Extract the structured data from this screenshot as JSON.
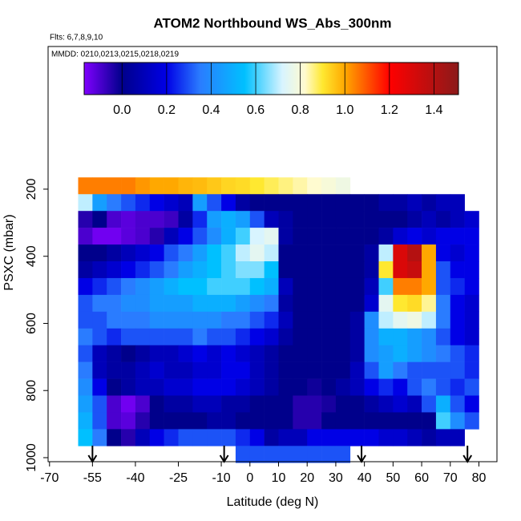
{
  "chart_data": {
    "type": "heatmap",
    "title": "ATOM2 Northbound WS_Abs_300nm",
    "subtitle": "Flts: 6,7,8,9,10",
    "annotation": "MMDD: 0210,0213,0215,0218,0219",
    "x_label": "Latitude (deg N)",
    "y_label": "PSXC (mbar)",
    "xlim": [
      -70.5,
      86.3
    ],
    "ylim": [
      1012,
      -225
    ],
    "xticks": [
      -70,
      -55,
      -40,
      -25,
      -10,
      0,
      10,
      20,
      30,
      40,
      50,
      60,
      70,
      80
    ],
    "yticks": [
      200,
      400,
      600,
      800,
      1000
    ],
    "x": [
      -57.5,
      -52.5,
      -47.5,
      -42.5,
      -37.5,
      -32.5,
      -27.5,
      -22.5,
      -17.5,
      -12.5,
      -7.5,
      -2.5,
      2.5,
      7.5,
      12.5,
      17.5,
      22.5,
      27.5,
      32.5,
      37.5,
      42.5,
      47.5,
      52.5,
      57.5,
      62.5,
      67.5,
      72.5,
      77.5
    ],
    "y": [
      190,
      240,
      290,
      340,
      390,
      440,
      490,
      540,
      590,
      640,
      690,
      740,
      790,
      840,
      890,
      940,
      990
    ],
    "z": [
      [
        1.05,
        1.05,
        1.05,
        1.05,
        1.02,
        1.0,
        1.0,
        0.98,
        0.97,
        0.95,
        0.93,
        0.92,
        0.9,
        0.88,
        0.86,
        0.84,
        0.82,
        0.8,
        0.78,
        null,
        null,
        null,
        null,
        null,
        null,
        null,
        null,
        null
      ],
      [
        0.7,
        0.45,
        0.35,
        0.3,
        0.25,
        0.2,
        0.15,
        0.1,
        0.45,
        0.3,
        0.2,
        0.05,
        0.0,
        0.0,
        0.0,
        0.0,
        0.0,
        0.0,
        0.0,
        0.0,
        0.0,
        0.05,
        0.05,
        0.1,
        0.05,
        0.1,
        0.1,
        null
      ],
      [
        -0.05,
        0.0,
        -0.1,
        -0.12,
        -0.1,
        -0.1,
        -0.08,
        0.05,
        0.25,
        0.45,
        0.5,
        0.45,
        0.3,
        0.1,
        0.05,
        0.0,
        0.0,
        0.0,
        0.0,
        0.0,
        0.0,
        0.0,
        0.0,
        0.05,
        0.1,
        0.05,
        0.1,
        0.15
      ],
      [
        -0.1,
        -0.15,
        -0.15,
        -0.12,
        -0.1,
        -0.05,
        0.1,
        0.2,
        0.3,
        0.4,
        0.5,
        0.6,
        0.72,
        0.75,
        0.05,
        0.0,
        0.0,
        0.0,
        0.0,
        0.0,
        0.0,
        0.05,
        0.15,
        0.2,
        0.15,
        0.2,
        0.2,
        0.2
      ],
      [
        0.0,
        0.0,
        0.05,
        0.1,
        0.15,
        0.2,
        0.3,
        0.35,
        0.45,
        0.55,
        0.6,
        0.7,
        0.75,
        0.7,
        0.0,
        0.0,
        0.0,
        0.0,
        0.0,
        0.0,
        0.05,
        0.7,
        1.3,
        1.4,
        1.0,
        0.2,
        0.15,
        0.2
      ],
      [
        0.05,
        0.1,
        0.15,
        0.2,
        0.25,
        0.3,
        0.35,
        0.45,
        0.5,
        0.55,
        0.6,
        0.65,
        0.65,
        0.55,
        0.0,
        0.0,
        0.0,
        0.0,
        0.0,
        0.0,
        0.05,
        0.9,
        1.3,
        1.35,
        1.0,
        0.3,
        0.2,
        0.2
      ],
      [
        0.2,
        0.25,
        0.3,
        0.35,
        0.4,
        0.45,
        0.5,
        0.55,
        0.55,
        0.6,
        0.6,
        0.6,
        0.55,
        0.5,
        0.1,
        0.0,
        0.0,
        0.0,
        0.0,
        0.0,
        0.1,
        0.6,
        1.05,
        1.05,
        1.0,
        0.3,
        0.25,
        0.2
      ],
      [
        0.3,
        0.35,
        0.35,
        0.4,
        0.4,
        0.45,
        0.45,
        0.45,
        0.5,
        0.5,
        0.5,
        0.45,
        0.4,
        0.35,
        0.05,
        0.0,
        0.0,
        0.0,
        0.0,
        0.0,
        0.15,
        0.75,
        0.9,
        0.92,
        0.85,
        0.35,
        0.2,
        0.15
      ],
      [
        0.3,
        0.3,
        0.35,
        0.35,
        0.35,
        0.4,
        0.4,
        0.4,
        0.4,
        0.4,
        0.35,
        0.35,
        0.3,
        0.25,
        0.1,
        0.0,
        0.0,
        0.0,
        0.0,
        0.05,
        0.4,
        0.7,
        0.75,
        0.78,
        0.7,
        0.35,
        0.2,
        0.15
      ],
      [
        0.35,
        0.3,
        0.25,
        0.3,
        0.3,
        0.3,
        0.3,
        0.3,
        0.35,
        0.3,
        0.3,
        0.25,
        0.2,
        0.15,
        0.05,
        0.0,
        0.0,
        0.0,
        0.0,
        0.05,
        0.4,
        0.5,
        0.5,
        0.45,
        0.4,
        0.3,
        0.2,
        0.15
      ],
      [
        0.3,
        0.1,
        0.05,
        0.0,
        0.05,
        0.1,
        0.1,
        0.15,
        0.2,
        0.15,
        0.2,
        0.15,
        0.1,
        0.05,
        0.0,
        0.0,
        0.0,
        0.0,
        0.0,
        0.05,
        0.4,
        0.45,
        0.5,
        0.45,
        0.4,
        0.35,
        0.3,
        0.25
      ],
      [
        0.35,
        0.1,
        0.05,
        0.05,
        0.1,
        0.15,
        0.1,
        0.1,
        0.15,
        0.15,
        0.2,
        0.2,
        0.1,
        0.05,
        0.0,
        0.0,
        0.0,
        0.0,
        0.0,
        0.1,
        0.3,
        0.45,
        0.35,
        0.3,
        0.3,
        0.3,
        0.3,
        0.25
      ],
      [
        0.4,
        0.2,
        0.0,
        0.05,
        0.1,
        0.1,
        0.15,
        0.15,
        0.2,
        0.2,
        0.2,
        0.15,
        0.1,
        0.05,
        0.0,
        0.0,
        -0.02,
        0.0,
        0.05,
        0.1,
        0.2,
        0.25,
        0.2,
        0.3,
        0.35,
        0.3,
        0.25,
        0.3
      ],
      [
        0.45,
        0.3,
        -0.1,
        -0.15,
        -0.1,
        0.0,
        0.05,
        0.05,
        0.1,
        0.1,
        0.05,
        0.05,
        0.0,
        0.0,
        0.0,
        -0.05,
        -0.05,
        -0.03,
        0.0,
        0.0,
        0.05,
        0.1,
        0.15,
        0.1,
        0.3,
        0.5,
        0.3,
        0.2
      ],
      [
        0.5,
        0.3,
        -0.1,
        -0.12,
        -0.05,
        0.0,
        0.0,
        0.0,
        0.0,
        0.05,
        0.05,
        0.0,
        0.0,
        0.0,
        0.0,
        -0.05,
        -0.05,
        0.0,
        0.0,
        0.0,
        0.0,
        0.0,
        0.0,
        0.0,
        0.0,
        0.6,
        0.4,
        0.3
      ],
      [
        0.55,
        0.35,
        0.0,
        -0.05,
        0.1,
        0.2,
        0.25,
        0.3,
        0.3,
        0.3,
        0.3,
        0.25,
        0.2,
        0.05,
        0.1,
        0.1,
        0.2,
        0.2,
        0.2,
        0.2,
        0.2,
        0.15,
        0.15,
        0.1,
        0.05,
        0.1,
        0.1,
        null
      ],
      [
        null,
        null,
        null,
        null,
        null,
        null,
        null,
        null,
        null,
        null,
        null,
        0.3,
        0.3,
        0.3,
        0.3,
        0.3,
        0.3,
        0.3,
        0.3,
        null,
        null,
        null,
        null,
        null,
        null,
        null,
        null,
        null
      ]
    ],
    "colorscale": [
      [
        -0.17,
        "#8000ff"
      ],
      [
        0.0,
        "#00008b"
      ],
      [
        0.2,
        "#0000e6"
      ],
      [
        0.35,
        "#2a7cff"
      ],
      [
        0.55,
        "#00c0ff"
      ],
      [
        0.72,
        "#d8f4ff"
      ],
      [
        0.82,
        "#fffbd0"
      ],
      [
        0.9,
        "#ffe830"
      ],
      [
        1.0,
        "#ffa800"
      ],
      [
        1.2,
        "#ff0000"
      ],
      [
        1.51,
        "#8b1a1a"
      ]
    ],
    "colorbar_lim": [
      -0.17,
      1.51
    ],
    "colorbar_ticks": [
      {
        "value": 0,
        "label": "0.0"
      },
      0.2,
      0.4,
      0.6,
      0.8,
      {
        "value": 1,
        "label": "1.0"
      },
      1.2,
      1.4
    ],
    "arrows": [
      -55,
      -9,
      39,
      76
    ]
  }
}
